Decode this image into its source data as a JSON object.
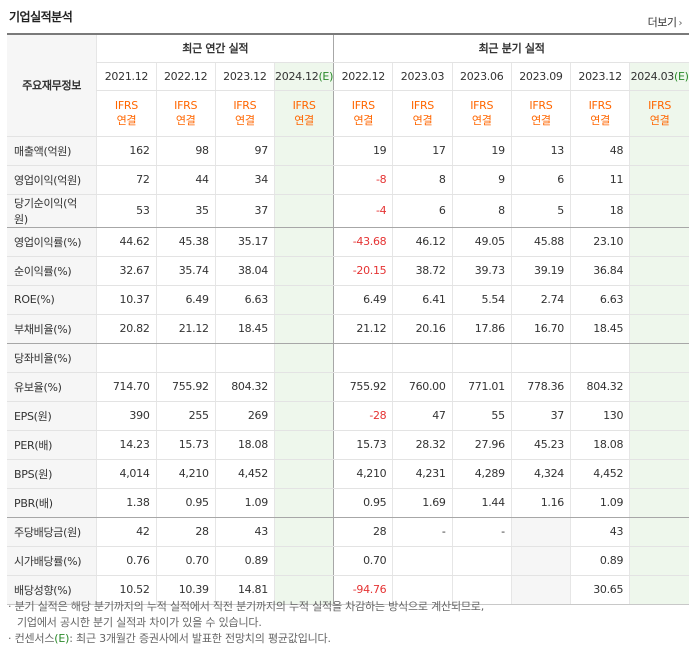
{
  "title": "기업실적분석",
  "more_label": "더보기",
  "header": {
    "row_head": "주요재무정보",
    "annual_group": "최근 연간 실적",
    "quarter_group": "최근 분기 실적",
    "annual_years": [
      "2021.12",
      "2022.12",
      "2023.12",
      "2024.12"
    ],
    "annual_est_suffix": "(E)",
    "quarter_years": [
      "2022.12",
      "2023.03",
      "2023.06",
      "2023.09",
      "2023.12",
      "2024.03"
    ],
    "quarter_est_suffix": "(E)",
    "ifrs_top": "IFRS",
    "ifrs_bottom": "연결"
  },
  "rows": [
    {
      "label": "매출액(억원)",
      "values": [
        "162",
        "98",
        "97",
        "",
        "19",
        "17",
        "19",
        "13",
        "48",
        ""
      ]
    },
    {
      "label": "영업이익(억원)",
      "values": [
        "72",
        "44",
        "34",
        "",
        "-8",
        "8",
        "9",
        "6",
        "11",
        ""
      ]
    },
    {
      "label": "당기순이익(억원)",
      "values": [
        "53",
        "35",
        "37",
        "",
        "-4",
        "6",
        "8",
        "5",
        "18",
        ""
      ]
    },
    {
      "label": "영업이익률(%)",
      "values": [
        "44.62",
        "45.38",
        "35.17",
        "",
        "-43.68",
        "46.12",
        "49.05",
        "45.88",
        "23.10",
        ""
      ]
    },
    {
      "label": "순이익률(%)",
      "values": [
        "32.67",
        "35.74",
        "38.04",
        "",
        "-20.15",
        "38.72",
        "39.73",
        "39.19",
        "36.84",
        ""
      ]
    },
    {
      "label": "ROE(%)",
      "values": [
        "10.37",
        "6.49",
        "6.63",
        "",
        "6.49",
        "6.41",
        "5.54",
        "2.74",
        "6.63",
        ""
      ]
    },
    {
      "label": "부채비율(%)",
      "values": [
        "20.82",
        "21.12",
        "18.45",
        "",
        "21.12",
        "20.16",
        "17.86",
        "16.70",
        "18.45",
        ""
      ]
    },
    {
      "label": "당좌비율(%)",
      "values": [
        "",
        "",
        "",
        "",
        "",
        "",
        "",
        "",
        "",
        ""
      ]
    },
    {
      "label": "유보율(%)",
      "values": [
        "714.70",
        "755.92",
        "804.32",
        "",
        "755.92",
        "760.00",
        "771.01",
        "778.36",
        "804.32",
        ""
      ]
    },
    {
      "label": "EPS(원)",
      "values": [
        "390",
        "255",
        "269",
        "",
        "-28",
        "47",
        "55",
        "37",
        "130",
        ""
      ]
    },
    {
      "label": "PER(배)",
      "values": [
        "14.23",
        "15.73",
        "18.08",
        "",
        "15.73",
        "28.32",
        "27.96",
        "45.23",
        "18.08",
        ""
      ]
    },
    {
      "label": "BPS(원)",
      "values": [
        "4,014",
        "4,210",
        "4,452",
        "",
        "4,210",
        "4,231",
        "4,289",
        "4,324",
        "4,452",
        ""
      ]
    },
    {
      "label": "PBR(배)",
      "values": [
        "1.38",
        "0.95",
        "1.09",
        "",
        "0.95",
        "1.69",
        "1.44",
        "1.16",
        "1.09",
        ""
      ]
    },
    {
      "label": "주당배당금(원)",
      "values": [
        "42",
        "28",
        "43",
        "",
        "28",
        "-",
        "-",
        "",
        "43",
        ""
      ]
    },
    {
      "label": "시가배당률(%)",
      "values": [
        "0.76",
        "0.70",
        "0.89",
        "",
        "0.70",
        "",
        "",
        "",
        "0.89",
        ""
      ]
    },
    {
      "label": "배당성향(%)",
      "values": [
        "10.52",
        "10.39",
        "14.81",
        "",
        "-94.76",
        "",
        "",
        "",
        "30.65",
        ""
      ]
    }
  ],
  "notes": {
    "line1": "· 분기 실적은 해당 분기까지의 누적 실적에서 직전 분기까지의 누적 실적을 차감하는 방식으로 계산되므로,",
    "line2": "기업에서 공시한 분기 실적과 차이가 있을 수 있습니다.",
    "line3_prefix": "· 컨센서스",
    "line3_mark": "(E)",
    "line3_suffix": ": 최근 3개월간 증권사에서 발표한 전망치의 평균값입니다."
  },
  "colors": {
    "ifrs": "#ff6600",
    "negative": "#e53333",
    "estimate_bg": "#eef7ec"
  }
}
